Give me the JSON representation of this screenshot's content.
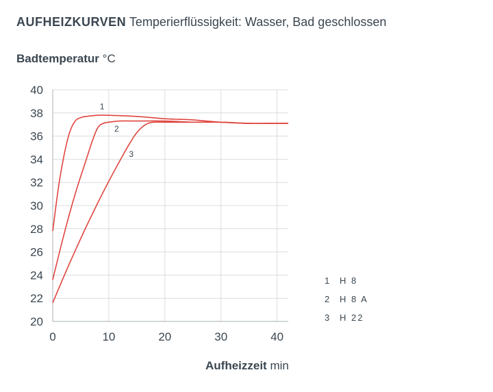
{
  "chart_data": {
    "type": "line",
    "title": "AUFHEIZKURVEN",
    "subtitle": "Temperierflüssigkeit: Wasser, Bad geschlossen",
    "ylabel": "Badtemperatur",
    "yunit": "°C",
    "xlabel": "Aufheizzeit",
    "xunit": "min",
    "xlim": [
      0,
      42
    ],
    "ylim": [
      20,
      40
    ],
    "xticks": [
      0,
      10,
      20,
      30,
      40
    ],
    "yticks": [
      20,
      22,
      24,
      26,
      28,
      30,
      32,
      34,
      36,
      38,
      40
    ],
    "grid": true,
    "series_color": "#e0453f",
    "series": [
      {
        "id": "1",
        "name": "H 8",
        "x": [
          0,
          1,
          2,
          3,
          4,
          5,
          6,
          8,
          10,
          15,
          20,
          25,
          30,
          35,
          40,
          42
        ],
        "y": [
          27.8,
          31.5,
          34.3,
          36.3,
          37.3,
          37.6,
          37.7,
          37.8,
          37.8,
          37.7,
          37.5,
          37.4,
          37.2,
          37.1,
          37.1,
          37.1
        ]
      },
      {
        "id": "2",
        "name": "H 8 A",
        "x": [
          0,
          2,
          4,
          6,
          7,
          8,
          9,
          10,
          12,
          15,
          20,
          25,
          30,
          35,
          40,
          42
        ],
        "y": [
          23.6,
          27.5,
          31.0,
          34.0,
          35.5,
          36.7,
          37.1,
          37.2,
          37.3,
          37.3,
          37.3,
          37.2,
          37.2,
          37.1,
          37.1,
          37.1
        ]
      },
      {
        "id": "3",
        "name": "H 22",
        "x": [
          0,
          2,
          4,
          6,
          8,
          10,
          12,
          14,
          15,
          16,
          17,
          18,
          20,
          25,
          30,
          35,
          40,
          42
        ],
        "y": [
          21.6,
          23.9,
          26.1,
          28.2,
          30.2,
          32.1,
          33.9,
          35.6,
          36.3,
          36.8,
          37.1,
          37.2,
          37.2,
          37.2,
          37.2,
          37.1,
          37.1,
          37.1
        ]
      }
    ],
    "annotations": [
      {
        "text": "1",
        "x": 8.8,
        "y": 38.3
      },
      {
        "text": "2",
        "x": 11.4,
        "y": 36.4
      },
      {
        "text": "3",
        "x": 14,
        "y": 34.2
      }
    ],
    "legend": [
      {
        "num": "1",
        "name": "H 8"
      },
      {
        "num": "2",
        "name": "H 8 A"
      },
      {
        "num": "3",
        "name": "H 22"
      }
    ]
  }
}
